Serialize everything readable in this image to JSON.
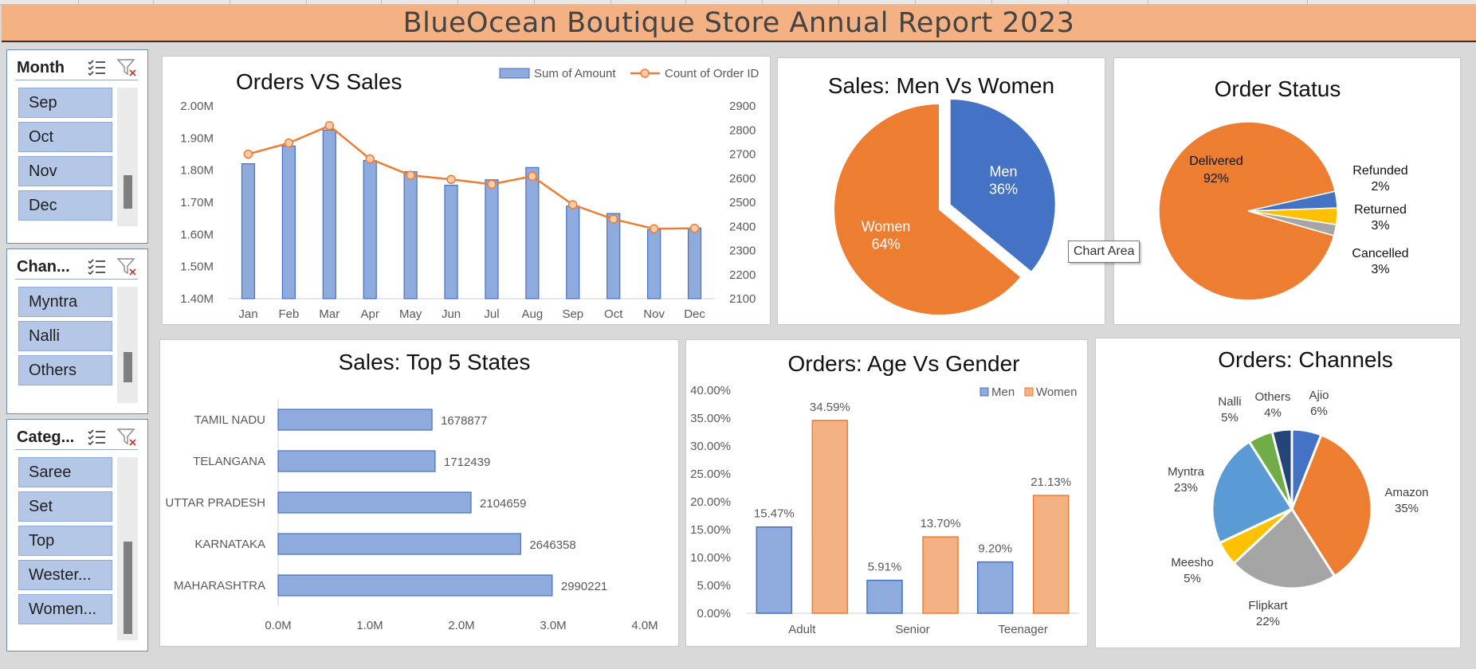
{
  "report_title": "BlueOcean Boutique Store Annual Report 2023",
  "slicers": {
    "month": {
      "title": "Month",
      "items": [
        "Sep",
        "Oct",
        "Nov",
        "Dec"
      ]
    },
    "channel": {
      "title": "Chan...",
      "items": [
        "Myntra",
        "Nalli",
        "Others"
      ]
    },
    "category": {
      "title": "Categ...",
      "items": [
        "Saree",
        "Set",
        "Top",
        "Wester...",
        "Women..."
      ]
    }
  },
  "tooltip": "Chart Area",
  "chart_data": [
    {
      "id": "orders_vs_sales",
      "type": "bar+line",
      "title": "Orders VS Sales",
      "categories": [
        "Jan",
        "Feb",
        "Mar",
        "Apr",
        "May",
        "Jun",
        "Jul",
        "Aug",
        "Sep",
        "Oct",
        "Nov",
        "Dec"
      ],
      "series": [
        {
          "name": "Sum of Amount",
          "axis": "left",
          "type": "bar",
          "color": "#8faadc",
          "values": [
            1820000,
            1875000,
            1925000,
            1830000,
            1795000,
            1753000,
            1770000,
            1808000,
            1688000,
            1665000,
            1615000,
            1620000
          ]
        },
        {
          "name": "Count of Order ID",
          "axis": "right",
          "type": "line",
          "color": "#ed7d31",
          "values": [
            2700,
            2746,
            2818,
            2680,
            2612,
            2595,
            2575,
            2608,
            2490,
            2430,
            2390,
            2392
          ]
        }
      ],
      "y_left": {
        "min": 1400000,
        "max": 2000000,
        "ticks": [
          "1.40M",
          "1.50M",
          "1.60M",
          "1.70M",
          "1.80M",
          "1.90M",
          "2.00M"
        ]
      },
      "y_right": {
        "min": 2100,
        "max": 2900,
        "ticks": [
          "2100",
          "2200",
          "2300",
          "2400",
          "2500",
          "2600",
          "2700",
          "2800",
          "2900"
        ]
      },
      "legend": "top-right"
    },
    {
      "id": "sales_men_women",
      "type": "pie",
      "title": "Sales: Men Vs Women",
      "slices": [
        {
          "label": "Men",
          "percent": 36,
          "pct_label": "36%",
          "color": "#4472c4"
        },
        {
          "label": "Women",
          "percent": 64,
          "pct_label": "64%",
          "color": "#ed7d31"
        }
      ]
    },
    {
      "id": "order_status",
      "type": "pie",
      "title": "Order Status",
      "slices": [
        {
          "label": "Delivered",
          "percent": 92,
          "pct_label": "92%",
          "color": "#ed7d31"
        },
        {
          "label": "Cancelled",
          "percent": 3,
          "pct_label": "3%",
          "color": "#4472c4"
        },
        {
          "label": "Returned",
          "percent": 3,
          "pct_label": "3%",
          "color": "#ffc000"
        },
        {
          "label": "Refunded",
          "percent": 2,
          "pct_label": "2%",
          "color": "#a5a5a5"
        }
      ]
    },
    {
      "id": "top5_states",
      "type": "bar",
      "orientation": "horizontal",
      "title": "Sales: Top 5 States",
      "categories": [
        "TAMIL NADU",
        "TELANGANA",
        "UTTAR PRADESH",
        "KARNATAKA",
        "MAHARASHTRA"
      ],
      "values": [
        1678877,
        1712439,
        2104659,
        2646358,
        2990221
      ],
      "x_ticks": [
        "0.0M",
        "1.0M",
        "2.0M",
        "3.0M",
        "4.0M"
      ],
      "xlim": [
        0,
        4000000
      ],
      "color": "#8faadc"
    },
    {
      "id": "age_vs_gender",
      "type": "bar",
      "title": "Orders: Age Vs Gender",
      "categories": [
        "Adult",
        "Senior",
        "Teenager"
      ],
      "series": [
        {
          "name": "Men",
          "color": "#8faadc",
          "values": [
            15.47,
            5.91,
            9.2
          ],
          "labels": [
            "15.47%",
            "5.91%",
            "9.20%"
          ]
        },
        {
          "name": "Women",
          "color": "#f4b183",
          "values": [
            34.59,
            13.7,
            21.13
          ],
          "labels": [
            "34.59%",
            "13.70%",
            "21.13%"
          ]
        }
      ],
      "y_ticks": [
        "0.00%",
        "5.00%",
        "10.00%",
        "15.00%",
        "20.00%",
        "25.00%",
        "30.00%",
        "35.00%",
        "40.00%"
      ],
      "ylim": [
        0,
        40
      ],
      "legend": "top-right"
    },
    {
      "id": "channels",
      "type": "pie",
      "title": "Orders: Channels",
      "slices": [
        {
          "label": "Ajio",
          "percent": 6,
          "pct_label": "6%",
          "color": "#4472c4"
        },
        {
          "label": "Amazon",
          "percent": 35,
          "pct_label": "35%",
          "color": "#ed7d31"
        },
        {
          "label": "Flipkart",
          "percent": 22,
          "pct_label": "22%",
          "color": "#a5a5a5"
        },
        {
          "label": "Meesho",
          "percent": 5,
          "pct_label": "5%",
          "color": "#ffc000"
        },
        {
          "label": "Myntra",
          "percent": 23,
          "pct_label": "23%",
          "color": "#5b9bd5"
        },
        {
          "label": "Nalli",
          "percent": 5,
          "pct_label": "5%",
          "color": "#70ad47"
        },
        {
          "label": "Others",
          "percent": 4,
          "pct_label": "4%",
          "color": "#264478"
        }
      ]
    }
  ]
}
